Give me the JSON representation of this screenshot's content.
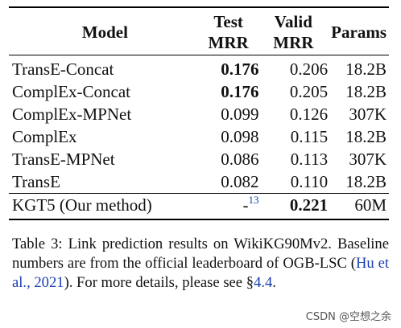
{
  "table": {
    "headers": {
      "model": "Model",
      "test_line1": "Test",
      "test_line2": "MRR",
      "valid_line1": "Valid",
      "valid_line2": "MRR",
      "params": "Params"
    },
    "rows": [
      {
        "model": "TransE-Concat",
        "test": "0.176",
        "valid": "0.206",
        "params": "18.2B"
      },
      {
        "model": "ComplEx-Concat",
        "test": "0.176",
        "valid": "0.205",
        "params": "18.2B"
      },
      {
        "model": "ComplEx-MPNet",
        "test": "0.099",
        "valid": "0.126",
        "params": "307K"
      },
      {
        "model": "ComplEx",
        "test": "0.098",
        "valid": "0.115",
        "params": "18.2B"
      },
      {
        "model": "TransE-MPNet",
        "test": "0.086",
        "valid": "0.113",
        "params": "307K"
      },
      {
        "model": "TransE",
        "test": "0.082",
        "valid": "0.110",
        "params": "18.2B"
      },
      {
        "model": "KGT5 (Our method)",
        "test": "-",
        "test_footnote": "13",
        "valid": "0.221",
        "params": "60M"
      }
    ]
  },
  "caption": {
    "part1": "Table 3: Link prediction results on WikiKG90Mv2. Baseline numbers are from the official leaderboard of OGB-LSC (",
    "citation": "Hu et al., 2021",
    "part2": "). For more details, please see §",
    "section_ref": "4.4",
    "part3": "."
  },
  "watermark": "CSDN @空想之余"
}
